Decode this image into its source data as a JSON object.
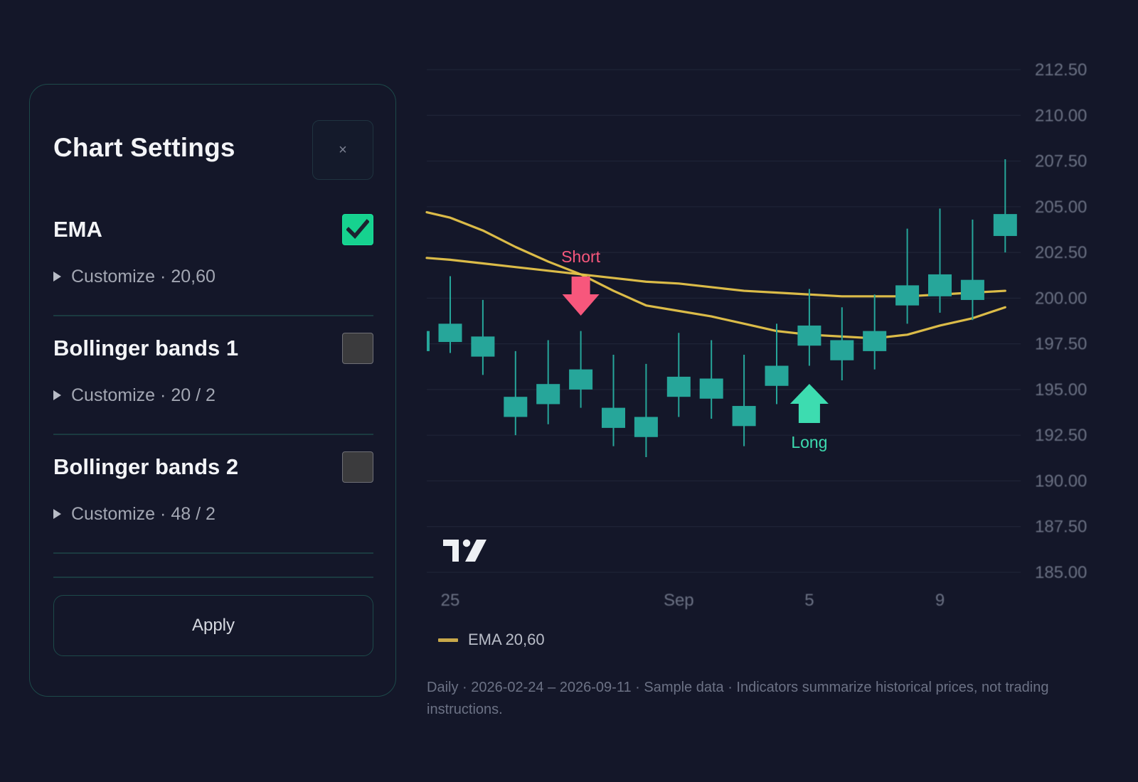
{
  "panel": {
    "title": "Chart Settings",
    "close_label": "×",
    "indicators": [
      {
        "name": "EMA",
        "enabled": true,
        "customize_label": "Customize",
        "params": "20,60"
      },
      {
        "name": "Bollinger bands 1",
        "enabled": false,
        "customize_label": "Customize",
        "params": "20 / 2"
      },
      {
        "name": "Bollinger bands 2",
        "enabled": false,
        "customize_label": "Customize",
        "params": "48 / 2"
      }
    ],
    "apply_label": "Apply"
  },
  "legend": {
    "label": "EMA 20,60",
    "color": "#c8a84a"
  },
  "footnote": "Daily · 2026-02-24 – 2026-09-11 · Sample data · Indicators summarize historical prices, not trading instructions.",
  "colors": {
    "background": "#141729",
    "candle": "#26a69a",
    "ema": "#e6c44a",
    "short": "#f7577c",
    "long": "#3ddcb0",
    "check_on": "#16d28f"
  },
  "chart_data": {
    "type": "candlestick",
    "y_ticks": [
      "212.50",
      "210.00",
      "207.50",
      "205.00",
      "202.50",
      "200.00",
      "197.50",
      "195.00",
      "192.50",
      "190.00",
      "187.50",
      "185.00"
    ],
    "ylim": [
      185.0,
      212.5
    ],
    "x_ticks": [
      {
        "label": "25",
        "index": 0
      },
      {
        "label": "Sep",
        "index": 7
      },
      {
        "label": "5",
        "index": 11
      },
      {
        "label": "9",
        "index": 15
      }
    ],
    "candles": [
      {
        "open": 197.6,
        "close": 198.6,
        "high": 201.2,
        "low": 197.0
      },
      {
        "open": 196.8,
        "close": 197.9,
        "high": 199.9,
        "low": 195.8
      },
      {
        "open": 193.5,
        "close": 194.6,
        "high": 197.1,
        "low": 192.5
      },
      {
        "open": 194.2,
        "close": 195.3,
        "high": 197.7,
        "low": 193.1
      },
      {
        "open": 195.0,
        "close": 196.1,
        "high": 198.2,
        "low": 194.0
      },
      {
        "open": 192.9,
        "close": 194.0,
        "high": 196.9,
        "low": 191.9
      },
      {
        "open": 192.4,
        "close": 193.5,
        "high": 196.4,
        "low": 191.3
      },
      {
        "open": 194.6,
        "close": 195.7,
        "high": 198.1,
        "low": 193.5
      },
      {
        "open": 194.5,
        "close": 195.6,
        "high": 197.7,
        "low": 193.4
      },
      {
        "open": 193.0,
        "close": 194.1,
        "high": 196.9,
        "low": 191.9
      },
      {
        "open": 195.2,
        "close": 196.3,
        "high": 198.6,
        "low": 194.2
      },
      {
        "open": 197.4,
        "close": 198.5,
        "high": 200.5,
        "low": 196.3
      },
      {
        "open": 196.6,
        "close": 197.7,
        "high": 199.5,
        "low": 195.5
      },
      {
        "open": 197.1,
        "close": 198.2,
        "high": 200.2,
        "low": 196.1
      },
      {
        "open": 199.6,
        "close": 200.7,
        "high": 203.8,
        "low": 198.6
      },
      {
        "open": 200.1,
        "close": 201.3,
        "high": 204.9,
        "low": 199.2
      },
      {
        "open": 199.9,
        "close": 201.0,
        "high": 204.3,
        "low": 198.8
      },
      {
        "open": 203.4,
        "close": 204.6,
        "high": 207.6,
        "low": 202.5
      }
    ],
    "partial_first_candle": {
      "open": 197.1,
      "close": 198.2
    },
    "series": [
      {
        "name": "EMA 20,60",
        "values": [
          204.4,
          203.7,
          202.8,
          202.0,
          201.3,
          200.4,
          199.6,
          199.3,
          199.0,
          198.6,
          198.2,
          198.0,
          197.9,
          197.8,
          198.0,
          198.5,
          198.9,
          199.5
        ]
      },
      {
        "name": "EMA 20,60",
        "values": [
          202.1,
          201.9,
          201.7,
          201.5,
          201.3,
          201.1,
          200.9,
          200.8,
          200.6,
          200.4,
          200.3,
          200.2,
          200.1,
          200.1,
          200.1,
          200.2,
          200.3,
          200.4
        ]
      }
    ],
    "annotations": [
      {
        "type": "sell-arrow",
        "label": "Short",
        "index": 4
      },
      {
        "type": "buy-arrow",
        "label": "Long",
        "index": 11
      }
    ],
    "watermark": "TV"
  }
}
